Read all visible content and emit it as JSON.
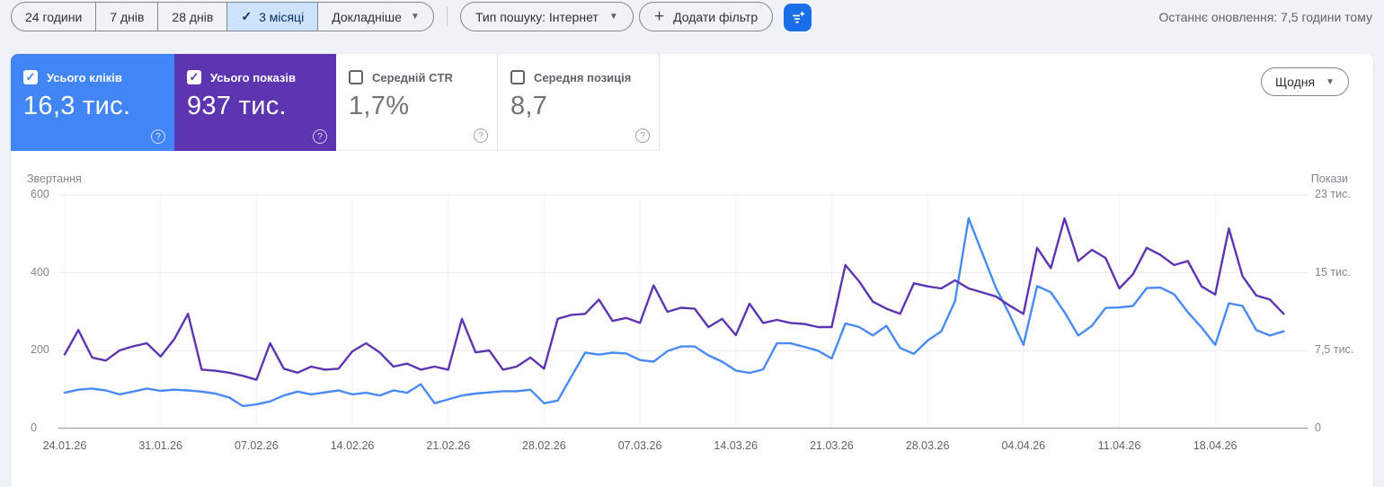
{
  "toolbar": {
    "date_ranges": {
      "items": [
        {
          "label": "24 години",
          "selected": false
        },
        {
          "label": "7 днів",
          "selected": false
        },
        {
          "label": "28 днів",
          "selected": false
        },
        {
          "label": "3 місяці",
          "selected": true
        },
        {
          "label": "Докладніше",
          "selected": false,
          "dropdown": true
        }
      ]
    },
    "search_type": "Тип пошуку: Інтернет",
    "add_filter_label": "Додати фільтр",
    "filter_button": "filter-sparkle",
    "last_update": "Останнє оновлення: 7,5 години тому"
  },
  "metrics": [
    {
      "label": "Усього кліків",
      "value": "16,3 тис.",
      "checked": true,
      "color": "#4285f4"
    },
    {
      "label": "Усього показів",
      "value": "937 тис.",
      "checked": true,
      "color": "#5e35b1"
    },
    {
      "label": "Середній CTR",
      "value": "1,7%",
      "checked": false
    },
    {
      "label": "Середня позиція",
      "value": "8,7",
      "checked": false
    }
  ],
  "granularity": "Щодня",
  "chart_data": {
    "type": "line",
    "grid": true,
    "x_tick_labels": [
      "24.01.26",
      "31.01.26",
      "07.02.26",
      "14.02.26",
      "21.02.26",
      "28.02.26",
      "07.03.26",
      "14.03.26",
      "21.03.26",
      "28.03.26",
      "04.04.26",
      "11.04.26",
      "18.04.26"
    ],
    "left_axis": {
      "title": "Звертання",
      "ticks": [
        "600",
        "400",
        "200",
        "0"
      ],
      "max": 600
    },
    "right_axis": {
      "title": "Покази",
      "ticks": [
        "23 тис.",
        "15 тис.",
        "7,5 тис.",
        "0"
      ],
      "max": 23
    },
    "series": [
      {
        "name": "Усього кліків",
        "axis": "left",
        "color": "#4a8af4",
        "values": [
          92,
          100,
          103,
          98,
          88,
          95,
          103,
          97,
          100,
          98,
          95,
          90,
          80,
          58,
          62,
          70,
          85,
          95,
          88,
          93,
          98,
          88,
          92,
          85,
          98,
          92,
          114,
          65,
          75,
          85,
          90,
          93,
          96,
          96,
          100,
          65,
          72,
          134,
          195,
          190,
          195,
          193,
          176,
          172,
          199,
          211,
          211,
          188,
          172,
          149,
          143,
          152,
          219,
          219,
          210,
          200,
          180,
          270,
          261,
          239,
          264,
          207,
          192,
          226,
          250,
          327,
          540,
          450,
          361,
          292,
          215,
          366,
          350,
          299,
          239,
          264,
          310,
          311,
          315,
          361,
          362,
          345,
          299,
          260,
          215,
          322,
          315,
          253,
          239,
          250
        ]
      },
      {
        "name": "Усього показів",
        "axis": "right",
        "color": "#5e35b1",
        "values": [
          7.3,
          9.7,
          7.0,
          6.7,
          7.7,
          8.1,
          8.4,
          7.1,
          8.8,
          11.3,
          5.8,
          5.7,
          5.5,
          5.2,
          4.8,
          8.4,
          5.9,
          5.5,
          6.1,
          5.8,
          5.9,
          7.6,
          8.4,
          7.5,
          6.1,
          6.4,
          5.8,
          6.1,
          5.8,
          10.8,
          7.5,
          7.7,
          5.8,
          6.1,
          7.0,
          5.9,
          10.8,
          11.2,
          11.3,
          12.7,
          10.6,
          10.9,
          10.4,
          14.1,
          11.5,
          11.9,
          11.8,
          10.0,
          10.8,
          9.2,
          12.3,
          10.4,
          10.7,
          10.4,
          10.3,
          10.0,
          10.0,
          16.1,
          14.5,
          12.5,
          11.8,
          11.3,
          14.3,
          14.0,
          13.8,
          14.6,
          13.8,
          13.4,
          13.0,
          12.1,
          11.3,
          17.8,
          15.8,
          20.7,
          16.5,
          17.6,
          16.8,
          13.8,
          15.2,
          17.8,
          17.1,
          16.1,
          16.5,
          14.0,
          13.2,
          19.7,
          15.0,
          13.1,
          12.7,
          11.3
        ]
      }
    ]
  }
}
